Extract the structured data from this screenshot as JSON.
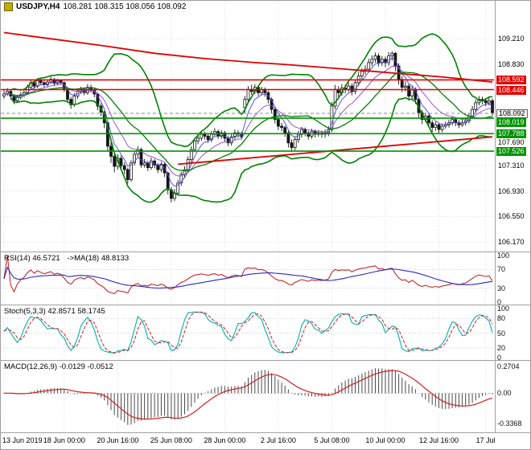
{
  "window": {
    "symbol": "USDJPY,H4",
    "ohlc_line": "108.281 108.315 108.056 108.092"
  },
  "panels": {
    "rsi": {
      "header": "RSI(14) 46.5721",
      "header_ma": "->MA(18) 48.8133"
    },
    "stoch": {
      "header": "Stoch(5,3,3) 42.8571 58.1745"
    },
    "macd": {
      "header": "MACD(12,26,9) -0.0129 -0.0512"
    }
  },
  "colors": {
    "up": "#ffffff",
    "down": "#151515",
    "candle_line": "#151515",
    "bollinger": "#008000",
    "ma_slow": "#e00000",
    "resistance": "#e60000",
    "support": "#009300",
    "grid": "#dedede",
    "level": "#cfcfcf",
    "rsi": "#c22a2a",
    "rsi_ma": "#2a2ac2",
    "stoch_k": "#00b0b0",
    "stoch_d": "#d02020",
    "macd_hist": "#4a4a4a",
    "macd_signal": "#d02020",
    "bid_line": "#8c8c8c"
  },
  "chart_data": {
    "type": "candlestick",
    "title": "USDJPY,H4",
    "ohlc_current": {
      "open": 108.281,
      "high": 108.315,
      "low": 108.056,
      "close": 108.092
    },
    "bid": 108.092,
    "price_axis_range": [
      106.05,
      109.75
    ],
    "grid_levels": [
      109.21,
      108.83,
      108.45,
      108.07,
      107.69,
      107.31,
      106.93,
      106.55,
      106.17
    ],
    "price_axis": {
      "labels": [
        {
          "text": "109.210",
          "value": 109.21,
          "style": "plain"
        },
        {
          "text": "108.830",
          "value": 108.83,
          "style": "plain"
        },
        {
          "text": "108.592",
          "value": 108.592,
          "style": "red"
        },
        {
          "text": "108.446",
          "value": 108.446,
          "style": "red"
        },
        {
          "text": "108.092",
          "value": 108.092,
          "style": "bid"
        },
        {
          "text": "108.019",
          "value": 108.019,
          "style": "green"
        },
        {
          "text": "107.788",
          "value": 107.788,
          "style": "green"
        },
        {
          "text": "107.690",
          "value": 107.69,
          "style": "plain"
        },
        {
          "text": "107.526",
          "value": 107.526,
          "style": "green"
        },
        {
          "text": "107.310",
          "value": 107.31,
          "style": "plain"
        },
        {
          "text": "106.930",
          "value": 106.93,
          "style": "plain"
        },
        {
          "text": "106.550",
          "value": 106.55,
          "style": "plain"
        },
        {
          "text": "106.170",
          "value": 106.17,
          "style": "plain"
        }
      ]
    },
    "hlines": [
      {
        "value": 108.592,
        "color": "#e60000",
        "role": "resistance"
      },
      {
        "value": 108.446,
        "color": "#e60000",
        "role": "resistance"
      },
      {
        "value": 108.019,
        "color": "#009300",
        "role": "support"
      },
      {
        "value": 107.788,
        "color": "#009300",
        "role": "support"
      },
      {
        "value": 107.526,
        "color": "#009300",
        "role": "support"
      }
    ],
    "x_ticks": [
      {
        "label": "13 Jun 2019",
        "bar": 0
      },
      {
        "label": "18 Jun 00:00",
        "bar": 18
      },
      {
        "label": "20 Jun 16:00",
        "bar": 34
      },
      {
        "label": "25 Jun 08:00",
        "bar": 50
      },
      {
        "label": "28 Jun 00:00",
        "bar": 66
      },
      {
        "label": "2 Jul 16:00",
        "bar": 82
      },
      {
        "label": "5 Jul 08:00",
        "bar": 98
      },
      {
        "label": "10 Jul 00:00",
        "bar": 114
      },
      {
        "label": "12 Jul 16:00",
        "bar": 130
      },
      {
        "label": "17 Jul",
        "bar": 144
      }
    ],
    "overlays": {
      "bollinger": {
        "period": 20,
        "deviation": 2
      },
      "ema_fast": {
        "period": 5
      },
      "ema_mid": {
        "period": 12
      },
      "ma_red": {
        "points": [
          [
            0,
            109.3
          ],
          [
            15,
            109.2
          ],
          [
            30,
            109.1
          ],
          [
            45,
            108.99
          ],
          [
            60,
            108.91
          ],
          [
            75,
            108.85
          ],
          [
            82,
            108.83
          ],
          [
            90,
            108.8
          ],
          [
            100,
            108.76
          ],
          [
            110,
            108.72
          ],
          [
            120,
            108.68
          ],
          [
            130,
            108.64
          ],
          [
            138,
            108.6
          ],
          [
            146,
            108.56
          ]
        ]
      },
      "trend_red": {
        "points": [
          [
            52,
            107.33
          ],
          [
            146,
            107.74
          ]
        ]
      }
    },
    "indicators": {
      "rsi": {
        "period": 14,
        "ma_period": 18,
        "value": 46.5721,
        "ma_value": 48.8133,
        "range": [
          0,
          100
        ],
        "levels": [
          {
            "text": "100",
            "value": 100
          },
          {
            "text": "70",
            "value": 70
          },
          {
            "text": "30",
            "value": 30
          },
          {
            "text": "0",
            "value": 0
          }
        ]
      },
      "stoch": {
        "k": 5,
        "d": 3,
        "slowing": 3,
        "value": 42.8571,
        "signal_value": 58.1745,
        "range": [
          0,
          100
        ],
        "levels": [
          {
            "text": "100",
            "value": 100
          },
          {
            "text": "80",
            "value": 80
          },
          {
            "text": "50",
            "value": 50
          },
          {
            "text": "20",
            "value": 20
          },
          {
            "text": "0",
            "value": 0
          }
        ]
      },
      "macd": {
        "fast": 12,
        "slow": 26,
        "signal": 9,
        "value": -0.0129,
        "signal_value": -0.0512,
        "levels": [
          {
            "text": "0.2704",
            "value": 0.2704
          },
          {
            "text": "0.00",
            "value": 0
          },
          {
            "text": "-0.3368",
            "value": -0.3368
          }
        ]
      }
    },
    "candles": [
      [
        108.35,
        108.44,
        108.31,
        108.38
      ],
      [
        108.38,
        108.47,
        108.35,
        108.42
      ],
      [
        108.42,
        108.45,
        108.3,
        108.35
      ],
      [
        108.35,
        108.38,
        108.23,
        108.28
      ],
      [
        108.28,
        108.37,
        108.25,
        108.33
      ],
      [
        108.33,
        108.41,
        108.3,
        108.37
      ],
      [
        108.37,
        108.45,
        108.33,
        108.4
      ],
      [
        108.4,
        108.52,
        108.37,
        108.48
      ],
      [
        108.48,
        108.59,
        108.45,
        108.55
      ],
      [
        108.55,
        108.58,
        108.46,
        108.5
      ],
      [
        108.5,
        108.62,
        108.47,
        108.58
      ],
      [
        108.58,
        108.61,
        108.51,
        108.55
      ],
      [
        108.55,
        108.58,
        108.48,
        108.52
      ],
      [
        108.52,
        108.6,
        108.49,
        108.56
      ],
      [
        108.56,
        108.64,
        108.53,
        108.6
      ],
      [
        108.6,
        108.62,
        108.5,
        108.54
      ],
      [
        108.54,
        108.61,
        108.51,
        108.58
      ],
      [
        108.58,
        108.6,
        108.52,
        108.55
      ],
      [
        108.55,
        108.57,
        108.41,
        108.45
      ],
      [
        108.45,
        108.47,
        108.25,
        108.3
      ],
      [
        108.3,
        108.34,
        108.16,
        108.22
      ],
      [
        108.22,
        108.39,
        108.19,
        108.35
      ],
      [
        108.35,
        108.46,
        108.31,
        108.42
      ],
      [
        108.42,
        108.49,
        108.38,
        108.45
      ],
      [
        108.45,
        108.48,
        108.36,
        108.4
      ],
      [
        108.4,
        108.53,
        108.37,
        108.48
      ],
      [
        108.48,
        108.52,
        108.4,
        108.44
      ],
      [
        108.44,
        108.47,
        108.33,
        108.38
      ],
      [
        108.38,
        108.4,
        108.14,
        108.2
      ],
      [
        108.2,
        108.24,
        108.05,
        108.11
      ],
      [
        108.11,
        108.13,
        107.87,
        107.95
      ],
      [
        107.95,
        107.97,
        107.52,
        107.6
      ],
      [
        107.6,
        107.66,
        107.35,
        107.45
      ],
      [
        107.45,
        107.5,
        107.21,
        107.3
      ],
      [
        107.3,
        107.48,
        107.25,
        107.42
      ],
      [
        107.42,
        107.46,
        107.26,
        107.31
      ],
      [
        107.31,
        107.36,
        107.18,
        107.25
      ],
      [
        107.25,
        107.28,
        107.04,
        107.1
      ],
      [
        107.1,
        107.39,
        107.07,
        107.35
      ],
      [
        107.35,
        107.53,
        107.31,
        107.48
      ],
      [
        107.48,
        107.6,
        107.44,
        107.55
      ],
      [
        107.55,
        107.58,
        107.28,
        107.32
      ],
      [
        107.32,
        107.41,
        107.28,
        107.35
      ],
      [
        107.35,
        107.38,
        107.23,
        107.28
      ],
      [
        107.28,
        107.43,
        107.25,
        107.38
      ],
      [
        107.38,
        107.41,
        107.27,
        107.32
      ],
      [
        107.32,
        107.35,
        107.2,
        107.25
      ],
      [
        107.25,
        107.37,
        107.21,
        107.33
      ],
      [
        107.33,
        107.35,
        107.14,
        107.2
      ],
      [
        107.2,
        107.22,
        106.88,
        106.95
      ],
      [
        106.95,
        106.99,
        106.76,
        106.82
      ],
      [
        106.82,
        106.96,
        106.78,
        106.9
      ],
      [
        106.9,
        107.1,
        106.86,
        107.05
      ],
      [
        107.05,
        107.22,
        107.01,
        107.18
      ],
      [
        107.18,
        107.3,
        107.13,
        107.25
      ],
      [
        107.25,
        107.45,
        107.21,
        107.4
      ],
      [
        107.4,
        107.6,
        107.36,
        107.55
      ],
      [
        107.55,
        107.73,
        107.51,
        107.68
      ],
      [
        107.68,
        107.77,
        107.63,
        107.72
      ],
      [
        107.72,
        107.83,
        107.68,
        107.78
      ],
      [
        107.78,
        107.82,
        107.7,
        107.75
      ],
      [
        107.75,
        107.79,
        107.65,
        107.7
      ],
      [
        107.7,
        107.83,
        107.66,
        107.78
      ],
      [
        107.78,
        107.87,
        107.74,
        107.82
      ],
      [
        107.82,
        107.85,
        107.71,
        107.75
      ],
      [
        107.75,
        107.84,
        107.71,
        107.8
      ],
      [
        107.8,
        107.83,
        107.67,
        107.72
      ],
      [
        107.72,
        107.76,
        107.6,
        107.65
      ],
      [
        107.65,
        107.79,
        107.61,
        107.74
      ],
      [
        107.74,
        107.85,
        107.7,
        107.8
      ],
      [
        107.8,
        107.84,
        107.73,
        107.78
      ],
      [
        107.78,
        107.82,
        107.7,
        107.74
      ],
      [
        108.18,
        108.35,
        108.1,
        108.3
      ],
      [
        108.3,
        108.5,
        108.26,
        108.45
      ],
      [
        108.45,
        108.52,
        108.37,
        108.42
      ],
      [
        108.42,
        108.53,
        108.38,
        108.48
      ],
      [
        108.48,
        108.51,
        108.35,
        108.4
      ],
      [
        108.4,
        108.49,
        108.36,
        108.45
      ],
      [
        108.45,
        108.48,
        108.34,
        108.4
      ],
      [
        108.4,
        108.43,
        108.24,
        108.3
      ],
      [
        108.3,
        108.33,
        108.09,
        108.15
      ],
      [
        108.15,
        108.18,
        107.94,
        108.0
      ],
      [
        108.0,
        108.04,
        107.84,
        107.9
      ],
      [
        107.9,
        107.95,
        107.82,
        107.88
      ],
      [
        107.88,
        107.91,
        107.74,
        107.8
      ],
      [
        107.8,
        107.83,
        107.58,
        107.65
      ],
      [
        107.65,
        107.7,
        107.52,
        107.58
      ],
      [
        107.58,
        107.75,
        107.54,
        107.7
      ],
      [
        107.7,
        107.83,
        107.65,
        107.78
      ],
      [
        107.78,
        107.89,
        107.73,
        107.85
      ],
      [
        107.85,
        107.88,
        107.75,
        107.8
      ],
      [
        107.8,
        107.83,
        107.7,
        107.75
      ],
      [
        107.75,
        107.86,
        107.71,
        107.82
      ],
      [
        107.82,
        107.85,
        107.73,
        107.78
      ],
      [
        107.78,
        107.84,
        107.74,
        107.8
      ],
      [
        107.8,
        107.83,
        107.73,
        107.78
      ],
      [
        107.78,
        107.85,
        107.73,
        107.8
      ],
      [
        107.8,
        107.9,
        107.75,
        107.85
      ],
      [
        107.85,
        108.26,
        107.81,
        108.2
      ],
      [
        108.2,
        108.52,
        108.15,
        108.45
      ],
      [
        108.45,
        108.5,
        108.33,
        108.4
      ],
      [
        108.4,
        108.53,
        108.35,
        108.47
      ],
      [
        108.47,
        108.52,
        108.39,
        108.45
      ],
      [
        108.45,
        108.56,
        108.41,
        108.5
      ],
      [
        108.5,
        108.54,
        108.36,
        108.42
      ],
      [
        108.42,
        108.6,
        108.38,
        108.55
      ],
      [
        108.55,
        108.71,
        108.5,
        108.65
      ],
      [
        108.65,
        108.77,
        108.6,
        108.72
      ],
      [
        108.72,
        108.81,
        108.67,
        108.75
      ],
      [
        108.75,
        108.91,
        108.7,
        108.85
      ],
      [
        108.85,
        108.96,
        108.8,
        108.9
      ],
      [
        108.9,
        109.0,
        108.85,
        108.95
      ],
      [
        108.95,
        108.99,
        108.79,
        108.85
      ],
      [
        108.85,
        108.95,
        108.8,
        108.9
      ],
      [
        108.9,
        108.94,
        108.78,
        108.85
      ],
      [
        108.85,
        109.01,
        108.8,
        108.95
      ],
      [
        108.95,
        109.02,
        108.88,
        108.99
      ],
      [
        108.99,
        109.01,
        108.72,
        108.8
      ],
      [
        108.8,
        108.84,
        108.52,
        108.6
      ],
      [
        108.6,
        108.65,
        108.41,
        108.48
      ],
      [
        108.48,
        108.57,
        108.42,
        108.5
      ],
      [
        108.5,
        108.53,
        108.28,
        108.35
      ],
      [
        108.35,
        108.5,
        108.3,
        108.45
      ],
      [
        108.45,
        108.48,
        108.23,
        108.3
      ],
      [
        108.3,
        108.33,
        108.03,
        108.1
      ],
      [
        108.1,
        108.14,
        107.93,
        108.0
      ],
      [
        108.0,
        108.1,
        107.96,
        108.05
      ],
      [
        108.05,
        108.08,
        107.89,
        107.95
      ],
      [
        107.95,
        107.99,
        107.81,
        107.88
      ],
      [
        107.88,
        107.97,
        107.83,
        107.92
      ],
      [
        107.92,
        107.95,
        107.8,
        107.85
      ],
      [
        107.85,
        107.94,
        107.81,
        107.9
      ],
      [
        107.9,
        107.97,
        107.86,
        107.92
      ],
      [
        107.92,
        108.0,
        107.88,
        107.95
      ],
      [
        107.95,
        108.05,
        107.91,
        108.0
      ],
      [
        108.0,
        108.03,
        107.9,
        107.95
      ],
      [
        107.95,
        107.99,
        107.87,
        107.92
      ],
      [
        107.92,
        108.0,
        107.89,
        107.95
      ],
      [
        107.95,
        108.03,
        107.91,
        107.98
      ],
      [
        107.98,
        108.1,
        107.94,
        108.05
      ],
      [
        108.05,
        108.2,
        108.01,
        108.15
      ],
      [
        108.15,
        108.3,
        108.11,
        108.25
      ],
      [
        108.25,
        108.35,
        108.21,
        108.3
      ],
      [
        108.3,
        108.34,
        108.23,
        108.28
      ],
      [
        108.28,
        108.32,
        108.2,
        108.25
      ],
      [
        108.25,
        108.33,
        108.21,
        108.28
      ],
      [
        108.281,
        108.315,
        108.056,
        108.092
      ]
    ]
  }
}
